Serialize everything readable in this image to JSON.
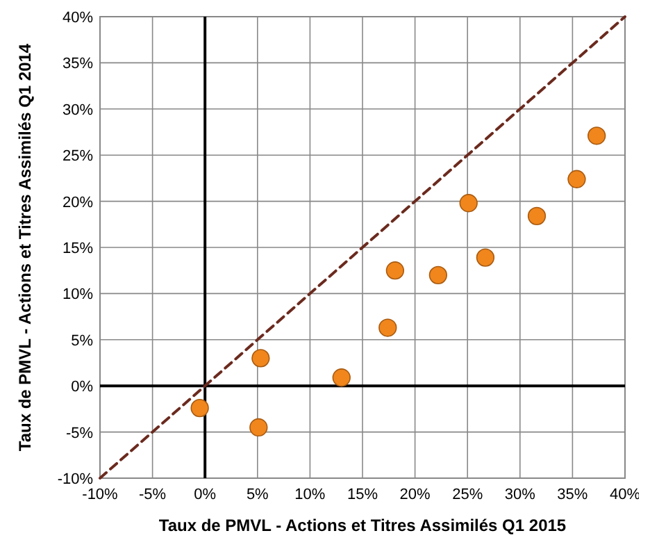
{
  "chart_data": {
    "type": "scatter",
    "xlabel": "Taux de PMVL -  Actions et Titres Assimilés Q1 2015",
    "ylabel": "Taux de PMVL -  Actions et Titres Assimilés Q1 2014",
    "xlim": [
      -10,
      40
    ],
    "ylim": [
      -10,
      40
    ],
    "xticks": [
      {
        "value": -10,
        "label": "-10%"
      },
      {
        "value": -5,
        "label": "-5%"
      },
      {
        "value": 0,
        "label": "0%"
      },
      {
        "value": 5,
        "label": "5%"
      },
      {
        "value": 10,
        "label": "10%"
      },
      {
        "value": 15,
        "label": "15%"
      },
      {
        "value": 20,
        "label": "20%"
      },
      {
        "value": 25,
        "label": "25%"
      },
      {
        "value": 30,
        "label": "30%"
      },
      {
        "value": 35,
        "label": "35%"
      },
      {
        "value": 40,
        "label": "40%"
      }
    ],
    "yticks": [
      {
        "value": -10,
        "label": "-10%"
      },
      {
        "value": -5,
        "label": "-5%"
      },
      {
        "value": 0,
        "label": "0%"
      },
      {
        "value": 5,
        "label": "5%"
      },
      {
        "value": 10,
        "label": "10%"
      },
      {
        "value": 15,
        "label": "15%"
      },
      {
        "value": 20,
        "label": "20%"
      },
      {
        "value": 25,
        "label": "25%"
      },
      {
        "value": 30,
        "label": "30%"
      },
      {
        "value": 35,
        "label": "35%"
      },
      {
        "value": 40,
        "label": "40%"
      }
    ],
    "grid": true,
    "series": [
      {
        "type": "line",
        "color": "#6b2a1e",
        "line_style": "dashed",
        "x": [
          -10,
          40
        ],
        "values": [
          -10,
          40
        ]
      },
      {
        "color": "#f0861c",
        "marker": "circle",
        "x": [
          -0.5,
          5.1,
          5.3,
          13,
          17.4,
          18.1,
          22.2,
          25.1,
          26.7,
          31.6,
          35.4,
          37.3
        ],
        "values": [
          -2.4,
          -4.5,
          3,
          0.9,
          6.3,
          12.5,
          12,
          19.8,
          13.9,
          18.4,
          22.4,
          27.1
        ]
      }
    ]
  }
}
